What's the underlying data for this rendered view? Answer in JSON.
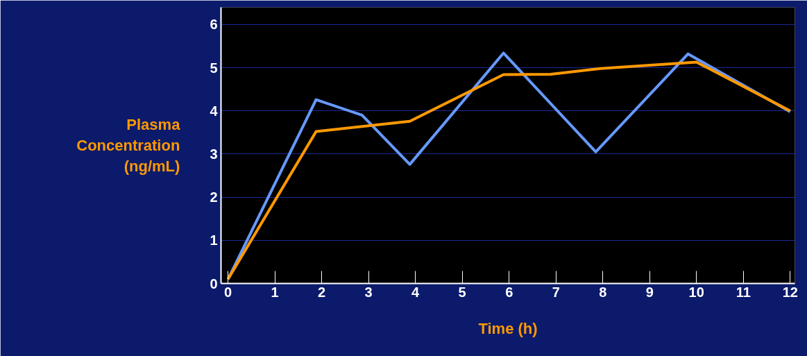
{
  "chart_data": {
    "type": "line",
    "xlabel": "Time (h)",
    "ylabel": "Plasma Concentration (ng/mL)",
    "xlim": [
      -0.15,
      12.1
    ],
    "ylim": [
      0,
      6.4
    ],
    "xticks": [
      0,
      1,
      2,
      3,
      4,
      5,
      6,
      7,
      8,
      9,
      10,
      11,
      12
    ],
    "yticks": [
      0,
      1,
      2,
      3,
      4,
      5,
      6
    ],
    "grid": "y",
    "marker": "none",
    "line_style": "solid",
    "series": [
      {
        "color": "#6699ff",
        "x": [
          0,
          1.88,
          2.86,
          3.88,
          5.88,
          7.85,
          9.82,
          12
        ],
        "values": [
          0.1,
          4.26,
          3.9,
          2.76,
          5.34,
          3.05,
          5.32,
          3.98
        ]
      },
      {
        "color": "#ff9900",
        "x": [
          0,
          1.88,
          3.88,
          5.88,
          6.89,
          7.95,
          10,
          12
        ],
        "values": [
          0.1,
          3.52,
          3.76,
          4.84,
          4.85,
          4.98,
          5.13,
          4.0
        ]
      }
    ]
  }
}
